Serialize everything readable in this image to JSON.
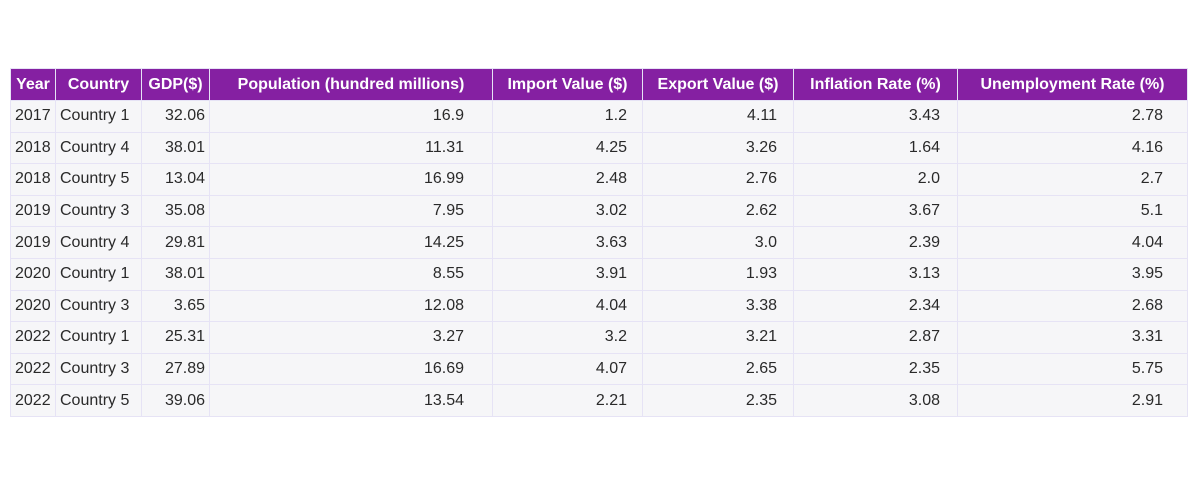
{
  "chart_data": {
    "type": "table",
    "columns": [
      "Year",
      "Country",
      "GDP($)",
      "Population (hundred millions)",
      "Import Value ($)",
      "Export Value ($)",
      "Inflation Rate (%)",
      "Unemployment Rate (%)"
    ],
    "rows": [
      [
        "2017",
        "Country 1",
        "32.06",
        "16.9",
        "1.2",
        "4.11",
        "3.43",
        "2.78"
      ],
      [
        "2018",
        "Country 4",
        "38.01",
        "11.31",
        "4.25",
        "3.26",
        "1.64",
        "4.16"
      ],
      [
        "2018",
        "Country 5",
        "13.04",
        "16.99",
        "2.48",
        "2.76",
        "2.0",
        "2.7"
      ],
      [
        "2019",
        "Country 3",
        "35.08",
        "7.95",
        "3.02",
        "2.62",
        "3.67",
        "5.1"
      ],
      [
        "2019",
        "Country 4",
        "29.81",
        "14.25",
        "3.63",
        "3.0",
        "2.39",
        "4.04"
      ],
      [
        "2020",
        "Country 1",
        "38.01",
        "8.55",
        "3.91",
        "1.93",
        "3.13",
        "3.95"
      ],
      [
        "2020",
        "Country 3",
        "3.65",
        "12.08",
        "4.04",
        "3.38",
        "2.34",
        "2.68"
      ],
      [
        "2022",
        "Country 1",
        "25.31",
        "3.27",
        "3.2",
        "3.21",
        "2.87",
        "3.31"
      ],
      [
        "2022",
        "Country 3",
        "27.89",
        "16.69",
        "4.07",
        "2.65",
        "2.35",
        "5.75"
      ],
      [
        "2022",
        "Country 5",
        "39.06",
        "13.54",
        "2.21",
        "2.35",
        "3.08",
        "2.91"
      ]
    ],
    "colors": {
      "header_background": "#8520a2",
      "header_text": "#ffffff",
      "cell_background": "#f6f6f8",
      "cell_text": "#2a2a2a",
      "grid_line": "#e6e3f5"
    }
  }
}
